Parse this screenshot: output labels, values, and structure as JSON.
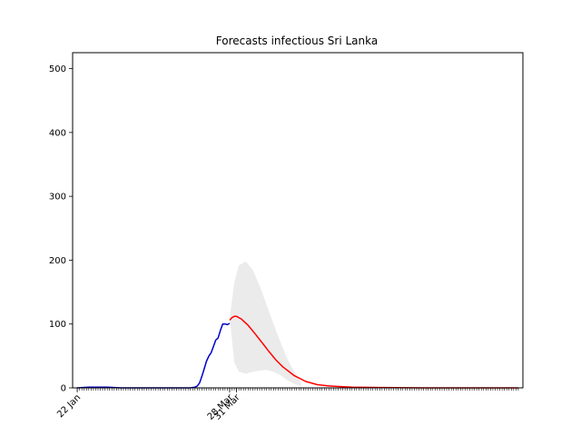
{
  "chart_data": {
    "type": "line",
    "title": "Forecasts infectious Sri Lanka",
    "xlabel": "",
    "ylabel": "",
    "ylim": [
      0,
      525
    ],
    "yticks": [
      0,
      100,
      200,
      300,
      400,
      500
    ],
    "x_start_date": "2020-01-22",
    "x_end_date": "2020-07-31",
    "x_tick_labels": [
      {
        "date": "2020-01-22",
        "label": "22 Jan"
      },
      {
        "date": "2020-03-28",
        "label": "28 Mar"
      },
      {
        "date": "2020-03-31",
        "label": "31 Mar"
      }
    ],
    "minor_ticks": "daily",
    "grid": false,
    "legend": "none",
    "series": [
      {
        "kind": "observed",
        "color": "#0000cc",
        "x": [
          "2020-01-22",
          "2020-01-27",
          "2020-01-30",
          "2020-02-04",
          "2020-02-10",
          "2020-02-20",
          "2020-03-01",
          "2020-03-08",
          "2020-03-11",
          "2020-03-13",
          "2020-03-14",
          "2020-03-15",
          "2020-03-16",
          "2020-03-17",
          "2020-03-18",
          "2020-03-19",
          "2020-03-20",
          "2020-03-21",
          "2020-03-22",
          "2020-03-23",
          "2020-03-24",
          "2020-03-25",
          "2020-03-26",
          "2020-03-27",
          "2020-03-28"
        ],
        "y": [
          0,
          1,
          1,
          1,
          0,
          0,
          0,
          0,
          0,
          1,
          3,
          8,
          18,
          30,
          42,
          50,
          55,
          65,
          75,
          78,
          90,
          100,
          100,
          99,
          101
        ]
      },
      {
        "kind": "forecast",
        "color": "#ff0000",
        "x": [
          "2020-03-28",
          "2020-03-29",
          "2020-03-30",
          "2020-03-31",
          "2020-04-02",
          "2020-04-05",
          "2020-04-08",
          "2020-04-11",
          "2020-04-14",
          "2020-04-17",
          "2020-04-20",
          "2020-04-25",
          "2020-04-30",
          "2020-05-05",
          "2020-05-10",
          "2020-05-20",
          "2020-06-01",
          "2020-06-20",
          "2020-07-31"
        ],
        "y": [
          106,
          110,
          112,
          112,
          108,
          98,
          85,
          71,
          57,
          44,
          33,
          19,
          10,
          5,
          3,
          1,
          0.5,
          0,
          0
        ]
      },
      {
        "kind": "confidence-band",
        "color": "#ebebeb",
        "x": [
          "2020-03-28",
          "2020-03-30",
          "2020-04-01",
          "2020-04-04",
          "2020-04-07",
          "2020-04-10",
          "2020-04-13",
          "2020-04-16",
          "2020-04-19",
          "2020-04-22",
          "2020-04-25",
          "2020-04-28"
        ],
        "lower": [
          110,
          40,
          25,
          22,
          25,
          27,
          28,
          25,
          20,
          12,
          6,
          2
        ],
        "upper": [
          110,
          165,
          192,
          198,
          185,
          160,
          130,
          100,
          72,
          45,
          25,
          8
        ]
      }
    ]
  }
}
